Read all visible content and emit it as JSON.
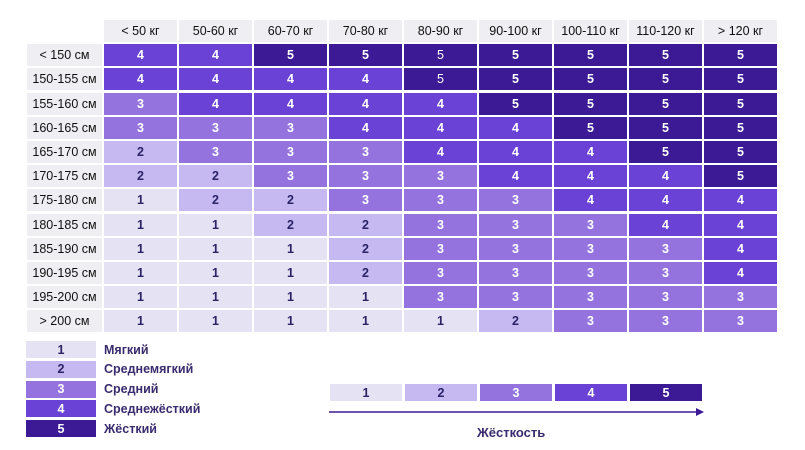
{
  "chart_data": {
    "type": "heatmap",
    "columns": [
      "< 50 кг",
      "50-60 кг",
      "60-70 кг",
      "70-80 кг",
      "80-90 кг",
      "90-100 кг",
      "100-110 кг",
      "110-120 кг",
      "> 120 кг"
    ],
    "rows": [
      "< 150 см",
      "150-155 см",
      "155-160 см",
      "160-165 см",
      "165-170 см",
      "170-175 см",
      "175-180 см",
      "180-185 см",
      "185-190 см",
      "190-195 см",
      "195-200 см",
      "> 200 см"
    ],
    "values": [
      [
        4,
        4,
        5,
        5,
        5,
        5,
        5,
        5,
        5
      ],
      [
        4,
        4,
        4,
        4,
        5,
        5,
        5,
        5,
        5
      ],
      [
        3,
        4,
        4,
        4,
        4,
        5,
        5,
        5,
        5
      ],
      [
        3,
        3,
        3,
        4,
        4,
        4,
        5,
        5,
        5
      ],
      [
        2,
        3,
        3,
        3,
        4,
        4,
        4,
        5,
        5
      ],
      [
        2,
        2,
        3,
        3,
        3,
        4,
        4,
        4,
        5
      ],
      [
        1,
        2,
        2,
        3,
        3,
        3,
        4,
        4,
        4
      ],
      [
        1,
        1,
        2,
        2,
        3,
        3,
        3,
        4,
        4
      ],
      [
        1,
        1,
        1,
        2,
        3,
        3,
        3,
        3,
        4
      ],
      [
        1,
        1,
        1,
        2,
        3,
        3,
        3,
        3,
        4
      ],
      [
        1,
        1,
        1,
        1,
        3,
        3,
        3,
        3,
        3
      ],
      [
        1,
        1,
        1,
        1,
        1,
        2,
        3,
        3,
        3
      ]
    ],
    "colors": {
      "1": "#e5e3f3",
      "2": "#c6b9f2",
      "3": "#9473de",
      "4": "#6a42d6",
      "5": "#3d1a95"
    },
    "legend": [
      {
        "value": "1",
        "label": "Мягкий"
      },
      {
        "value": "2",
        "label": "Среднемягкий"
      },
      {
        "value": "3",
        "label": "Средний"
      },
      {
        "value": "4",
        "label": "Среднежёсткий"
      },
      {
        "value": "5",
        "label": "Жёсткий"
      }
    ],
    "scale": {
      "values": [
        "1",
        "2",
        "3",
        "4",
        "5"
      ],
      "label": "Жёсткость"
    }
  }
}
